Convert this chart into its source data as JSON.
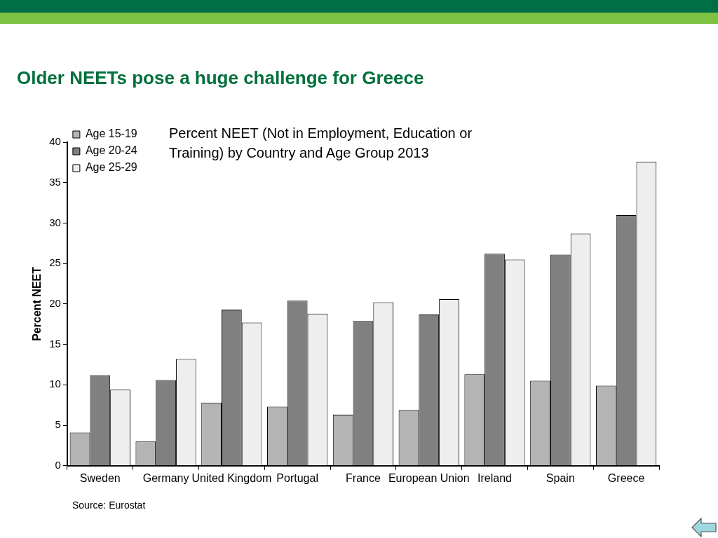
{
  "chart_data": {
    "type": "bar",
    "title": "Older NEETs pose a huge challenge for Greece",
    "subtitle": "Percent NEET (Not in Employment, Education or Training) by Country and Age Group 2013",
    "ylabel": "Percent NEET",
    "annotations": [
      "Source: Eurostat"
    ],
    "categories": [
      "Sweden",
      "Germany",
      "United Kingdom",
      "Portugal",
      "France",
      "European Union",
      "Ireland",
      "Spain",
      "Greece"
    ],
    "series": [
      {
        "name": "Age 15-19",
        "color": "#b4b4b4",
        "values": [
          4.1,
          3.0,
          7.8,
          7.3,
          6.3,
          6.9,
          11.3,
          10.5,
          9.9
        ]
      },
      {
        "name": "Age 20-24",
        "color": "#808080",
        "values": [
          11.2,
          10.6,
          19.3,
          20.4,
          17.9,
          18.7,
          26.2,
          26.1,
          31.0
        ]
      },
      {
        "name": "Age 25-29",
        "color": "#eeeeee",
        "values": [
          9.4,
          13.2,
          17.7,
          18.8,
          20.2,
          20.6,
          25.5,
          28.7,
          37.6
        ]
      }
    ],
    "ylim": [
      0,
      40
    ],
    "yticks": [
      0,
      5,
      10,
      15,
      20,
      25,
      30,
      35,
      40
    ],
    "grid": false,
    "legend": "top left"
  }
}
